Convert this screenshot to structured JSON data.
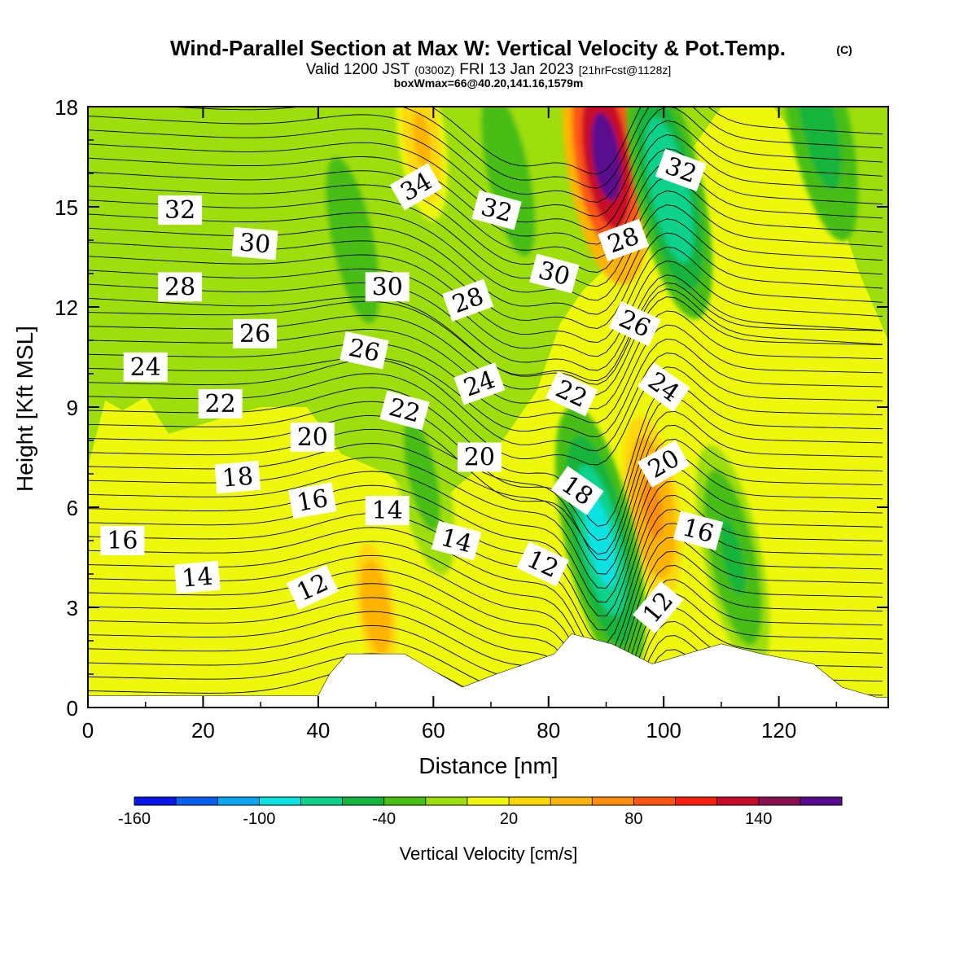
{
  "title": {
    "main": "Wind-Parallel Section at Max W: Vertical Velocity & Pot.Temp.",
    "copyright": "(C)",
    "valid_a": "Valid 1200 JST",
    "valid_z": "(0300Z)",
    "valid_b": "FRI 13 Jan 2023",
    "forecast": "[21hrFcst@1128z]",
    "box": "boxWmax=66@40.20,141.16,1579m"
  },
  "chart_data": {
    "type": "heatmap",
    "xlabel": "Distance [nm]",
    "ylabel": "Height [Kft MSL]",
    "xlim": [
      0,
      139
    ],
    "ylim": [
      0,
      18
    ],
    "x_ticks": [
      "0",
      "20",
      "40",
      "60",
      "80",
      "100",
      "120"
    ],
    "y_ticks": [
      "0",
      "3",
      "6",
      "9",
      "12",
      "15",
      "18"
    ],
    "colorbar": {
      "title": "Vertical Velocity [cm/s]",
      "tick_labels": [
        "-160",
        "-100",
        "-40",
        "20",
        "80",
        "140"
      ],
      "levels": [
        -160,
        -140,
        -120,
        -100,
        -80,
        -60,
        -40,
        -20,
        0,
        20,
        40,
        60,
        80,
        100,
        120,
        140,
        160,
        180
      ],
      "colors": [
        "#0a16e8",
        "#0a5ef2",
        "#08a6f2",
        "#0fe2e2",
        "#0dd28b",
        "#12b43b",
        "#47be12",
        "#9ede0c",
        "#eef80a",
        "#ffd808",
        "#ffb406",
        "#ff8e0e",
        "#ff5614",
        "#f8200f",
        "#c80a28",
        "#8a0f52",
        "#5a0a8c"
      ]
    },
    "velocity_features": [
      {
        "kind": "updraft",
        "x": 90,
        "y": 16.5,
        "value_cm_s": 160
      },
      {
        "kind": "updraft",
        "x": 98,
        "y": 6,
        "value_cm_s": 70
      },
      {
        "kind": "updraft",
        "x": 50,
        "y": 3,
        "value_cm_s": 50
      },
      {
        "kind": "updraft",
        "x": 58,
        "y": 17,
        "value_cm_s": 45
      },
      {
        "kind": "downdraft",
        "x": 89,
        "y": 5,
        "value_cm_s": -90
      },
      {
        "kind": "downdraft",
        "x": 101,
        "y": 15.5,
        "value_cm_s": -80
      },
      {
        "kind": "downdraft",
        "x": 127,
        "y": 17.5,
        "value_cm_s": -60
      },
      {
        "kind": "downdraft",
        "x": 112,
        "y": 4.5,
        "value_cm_s": -50
      },
      {
        "kind": "downdraft",
        "x": 46,
        "y": 14,
        "value_cm_s": -40
      },
      {
        "kind": "downdraft",
        "x": 73,
        "y": 16,
        "value_cm_s": -40
      },
      {
        "kind": "downdraft",
        "x": 58,
        "y": 7,
        "value_cm_s": -30
      }
    ],
    "terrain": [
      {
        "x": 0,
        "h": 0.35
      },
      {
        "x": 40,
        "h": 0.35
      },
      {
        "x": 42,
        "h": 1.0
      },
      {
        "x": 45,
        "h": 1.6
      },
      {
        "x": 55,
        "h": 1.6
      },
      {
        "x": 61,
        "h": 1.0
      },
      {
        "x": 65,
        "h": 0.6
      },
      {
        "x": 71,
        "h": 1.0
      },
      {
        "x": 81,
        "h": 1.6
      },
      {
        "x": 84,
        "h": 2.2
      },
      {
        "x": 91,
        "h": 1.9
      },
      {
        "x": 98,
        "h": 1.3
      },
      {
        "x": 104,
        "h": 1.6
      },
      {
        "x": 110,
        "h": 1.9
      },
      {
        "x": 117,
        "h": 1.6
      },
      {
        "x": 126,
        "h": 1.3
      },
      {
        "x": 131,
        "h": 0.6
      },
      {
        "x": 137,
        "h": 0.3
      },
      {
        "x": 139,
        "h": 0.3
      }
    ],
    "contour_labels": [
      {
        "text": "32",
        "x": 16,
        "y": 14.9,
        "rot": 0
      },
      {
        "text": "30",
        "x": 29,
        "y": 13.9,
        "rot": 5
      },
      {
        "text": "28",
        "x": 16,
        "y": 12.6,
        "rot": 0
      },
      {
        "text": "26",
        "x": 29,
        "y": 11.2,
        "rot": 0
      },
      {
        "text": "24",
        "x": 10,
        "y": 10.2,
        "rot": 0
      },
      {
        "text": "22",
        "x": 23,
        "y": 9.1,
        "rot": 0
      },
      {
        "text": "20",
        "x": 39,
        "y": 8.1,
        "rot": 0
      },
      {
        "text": "18",
        "x": 26,
        "y": 6.9,
        "rot": -5
      },
      {
        "text": "16",
        "x": 39,
        "y": 6.2,
        "rot": -10
      },
      {
        "text": "16",
        "x": 6,
        "y": 5.0,
        "rot": 0
      },
      {
        "text": "14",
        "x": 19,
        "y": 3.9,
        "rot": -5
      },
      {
        "text": "12",
        "x": 39,
        "y": 3.6,
        "rot": -25
      },
      {
        "text": "14",
        "x": 52,
        "y": 5.9,
        "rot": 0
      },
      {
        "text": "14",
        "x": 64,
        "y": 5.0,
        "rot": 15
      },
      {
        "text": "30",
        "x": 52,
        "y": 12.6,
        "rot": 0
      },
      {
        "text": "26",
        "x": 48,
        "y": 10.7,
        "rot": 12
      },
      {
        "text": "22",
        "x": 55,
        "y": 8.9,
        "rot": 15
      },
      {
        "text": "34",
        "x": 57,
        "y": 15.6,
        "rot": -30
      },
      {
        "text": "28",
        "x": 66,
        "y": 12.2,
        "rot": -20
      },
      {
        "text": "24",
        "x": 68,
        "y": 9.7,
        "rot": -20
      },
      {
        "text": "20",
        "x": 68,
        "y": 7.5,
        "rot": 0
      },
      {
        "text": "32",
        "x": 71,
        "y": 14.9,
        "rot": 15
      },
      {
        "text": "30",
        "x": 81,
        "y": 13.0,
        "rot": 15
      },
      {
        "text": "22",
        "x": 84,
        "y": 9.4,
        "rot": 25
      },
      {
        "text": "18",
        "x": 85,
        "y": 6.5,
        "rot": 35
      },
      {
        "text": "12",
        "x": 79,
        "y": 4.3,
        "rot": 25
      },
      {
        "text": "28",
        "x": 93,
        "y": 14.0,
        "rot": -20
      },
      {
        "text": "26",
        "x": 95,
        "y": 11.5,
        "rot": 25
      },
      {
        "text": "24",
        "x": 100,
        "y": 9.6,
        "rot": 35
      },
      {
        "text": "20",
        "x": 100,
        "y": 7.3,
        "rot": -30
      },
      {
        "text": "16",
        "x": 106,
        "y": 5.3,
        "rot": 15
      },
      {
        "text": "12",
        "x": 99,
        "y": 3.0,
        "rot": -50
      },
      {
        "text": "32",
        "x": 103,
        "y": 16.1,
        "rot": 20
      }
    ]
  }
}
